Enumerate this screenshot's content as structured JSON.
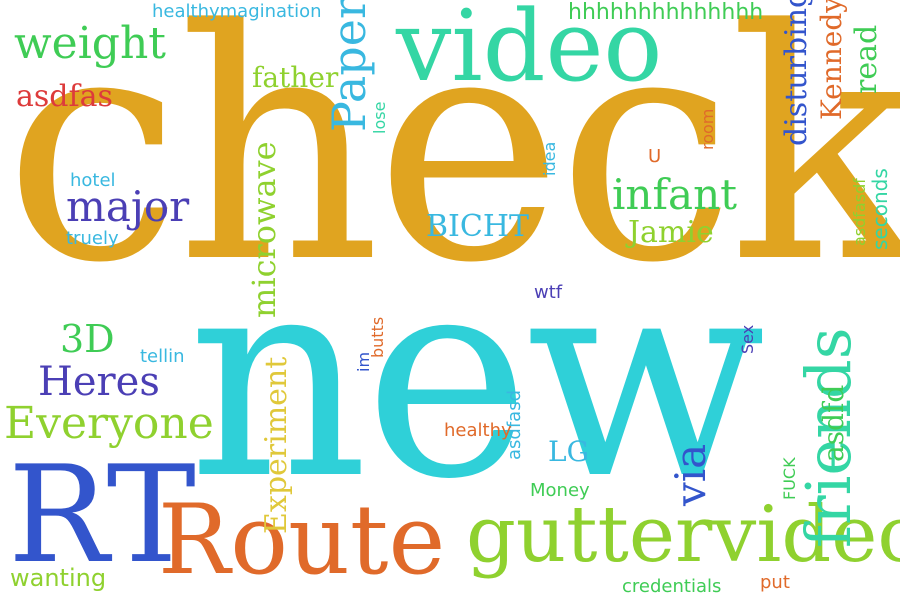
{
  "palette": {
    "gold": "#e0a420",
    "cyan": "#2fd0d8",
    "teal": "#34d6a4",
    "lime": "#8fd12f",
    "green": "#3fcc55",
    "blue": "#3355cc",
    "orange": "#e06a2a",
    "red": "#dd3b3b",
    "sky": "#39b8e0",
    "purple": "#4b3fb5"
  },
  "words": {
    "check": "check",
    "new": "new",
    "video": "video",
    "rt": "RT",
    "route": "Route",
    "guttervideo": "guttervideo",
    "friends": "friends",
    "weight": "weight",
    "healthymagination": "healthymagination",
    "hhh": "hhhhhhhhhhhhhh",
    "father": "father",
    "paper": "Paper",
    "disturbing": "disturbing",
    "kennedy": "Kennedy",
    "read": "read",
    "asdfas": "asdfas",
    "lose": "lose",
    "idea": "idea",
    "room": "room",
    "u": "U",
    "hotel": "hotel",
    "major": "major",
    "truely": "truely",
    "microwave": "microwave",
    "bicht": "BICHT",
    "infant": "infant",
    "jamie": "Jamie",
    "asdfasdf": "asdfasdf",
    "seconds": "seconds",
    "wtf": "wtf",
    "3d": "3D",
    "tellin": "tellin",
    "heres": "Heres",
    "everyone": "Everyone",
    "butts": "butts",
    "im": "im",
    "sex": "Sex",
    "asdfasd": "asdfasd",
    "asdfd": "asdfd",
    "healthy": "healthy",
    "lg": "LG",
    "experiment": "Experiment",
    "via": "via",
    "fuck": "FUCK",
    "money": "Money",
    "wanting": "wanting",
    "credentials": "credentials",
    "put": "put"
  }
}
